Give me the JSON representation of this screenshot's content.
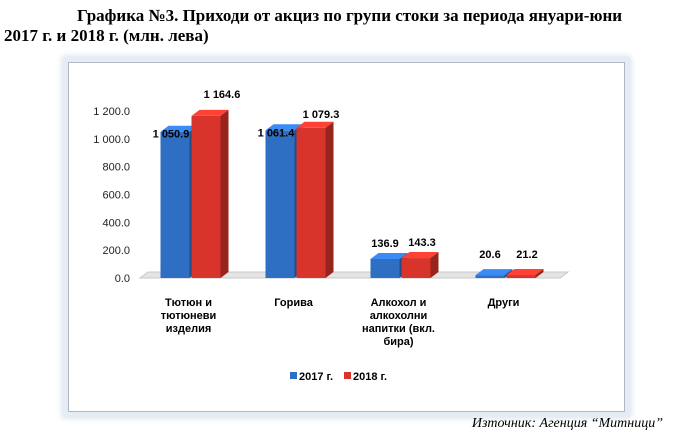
{
  "header": {
    "title_line1": "Графика №3. Приходи от акциз по групи стоки за периода януари-юни",
    "title_line2": "2017 г. и 2018 г. (млн. лева)"
  },
  "source": "Източник: Агенция “Митници”",
  "chart_data": {
    "type": "bar",
    "title": "Приходи от акциз по групи стоки за периода януари-юни 2017 г. и 2018 г. (млн. лева)",
    "categories": [
      [
        "Тютюн и",
        "тютюневи",
        "изделия"
      ],
      [
        "Горива"
      ],
      [
        "Алкохол и",
        "алкохолни",
        "напитки (вкл.",
        "бира)"
      ],
      [
        "Други"
      ]
    ],
    "series": [
      {
        "name": "2017 г.",
        "color": "#2e6fc4",
        "values": [
          1050.9,
          1061.4,
          136.9,
          20.6
        ],
        "labels": [
          "1 050.9",
          "1 061.4",
          "136.9",
          "20.6"
        ]
      },
      {
        "name": "2018 г.",
        "color": "#d9342b",
        "values": [
          1164.6,
          1079.3,
          143.3,
          21.2
        ],
        "labels": [
          "1 164.6",
          "1 079.3",
          "143.3",
          "21.2"
        ]
      }
    ],
    "yticks": [
      "0.0",
      "200.0",
      "400.0",
      "600.0",
      "800.0",
      "1 000.0",
      "1 200.0"
    ],
    "ylim": [
      0,
      1200
    ],
    "legend_position": "bottom",
    "grid": false
  }
}
